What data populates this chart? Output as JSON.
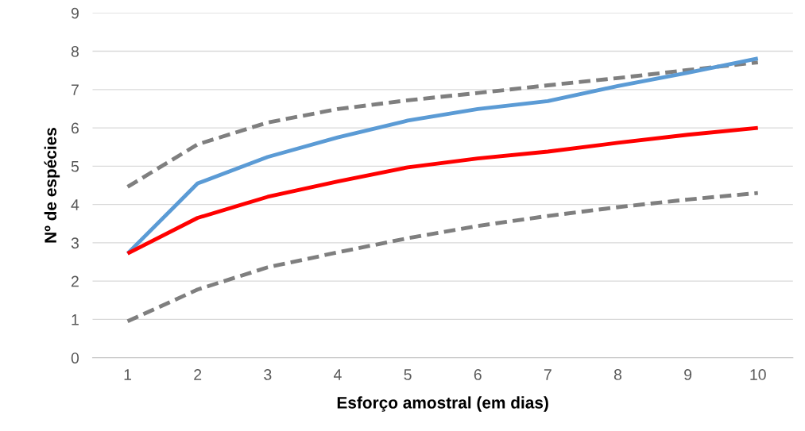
{
  "chart_data": {
    "type": "line",
    "xlabel": "Esforço amostral (em dias)",
    "ylabel": "Nº de espécies",
    "categories": [
      "1",
      "2",
      "3",
      "4",
      "5",
      "6",
      "7",
      "8",
      "9",
      "10"
    ],
    "ylim": [
      0,
      9
    ],
    "yticks": [
      0,
      1,
      2,
      3,
      4,
      5,
      6,
      7,
      8,
      9
    ],
    "grid": "y",
    "legend": false,
    "series": [
      {
        "color": "#7f7f7f",
        "line_style": "dashed",
        "values": [
          4.46,
          5.57,
          6.14,
          6.49,
          6.72,
          6.91,
          7.11,
          7.3,
          7.51,
          7.71
        ]
      },
      {
        "color": "#7f7f7f",
        "line_style": "dashed",
        "values": [
          0.95,
          1.78,
          2.36,
          2.75,
          3.12,
          3.44,
          3.7,
          3.93,
          4.13,
          4.3
        ]
      },
      {
        "color": "#5b9bd5",
        "line_style": "solid",
        "values": [
          2.72,
          4.55,
          5.24,
          5.75,
          6.19,
          6.49,
          6.7,
          7.09,
          7.44,
          7.81
        ]
      },
      {
        "color": "#ff0000",
        "line_style": "solid",
        "values": [
          2.72,
          3.65,
          4.2,
          4.6,
          4.97,
          5.2,
          5.38,
          5.61,
          5.82,
          6.0
        ]
      }
    ]
  }
}
